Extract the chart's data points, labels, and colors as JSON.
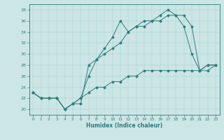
{
  "xlabel": "Humidex (Indice chaleur)",
  "ylabel": "",
  "bg_color": "#cce5e5",
  "line_color": "#2e7d7d",
  "xlim": [
    -0.5,
    23.5
  ],
  "ylim": [
    19,
    39
  ],
  "yticks": [
    20,
    22,
    24,
    26,
    28,
    30,
    32,
    34,
    36,
    38
  ],
  "xticks": [
    0,
    1,
    2,
    3,
    4,
    5,
    6,
    7,
    8,
    9,
    10,
    11,
    12,
    13,
    14,
    15,
    16,
    17,
    18,
    19,
    20,
    21,
    22,
    23
  ],
  "series": [
    [
      23,
      22,
      22,
      22,
      20,
      21,
      21,
      28,
      29,
      31,
      33,
      36,
      34,
      35,
      36,
      36,
      37,
      38,
      37,
      35,
      30,
      27,
      28,
      28
    ],
    [
      23,
      22,
      22,
      22,
      20,
      21,
      22,
      26,
      29,
      30,
      31,
      32,
      34,
      35,
      35,
      36,
      36,
      37,
      37,
      37,
      35,
      27,
      27,
      28
    ],
    [
      23,
      22,
      22,
      22,
      20,
      21,
      22,
      23,
      24,
      24,
      25,
      25,
      26,
      26,
      27,
      27,
      27,
      27,
      27,
      27,
      27,
      27,
      28,
      28
    ]
  ]
}
